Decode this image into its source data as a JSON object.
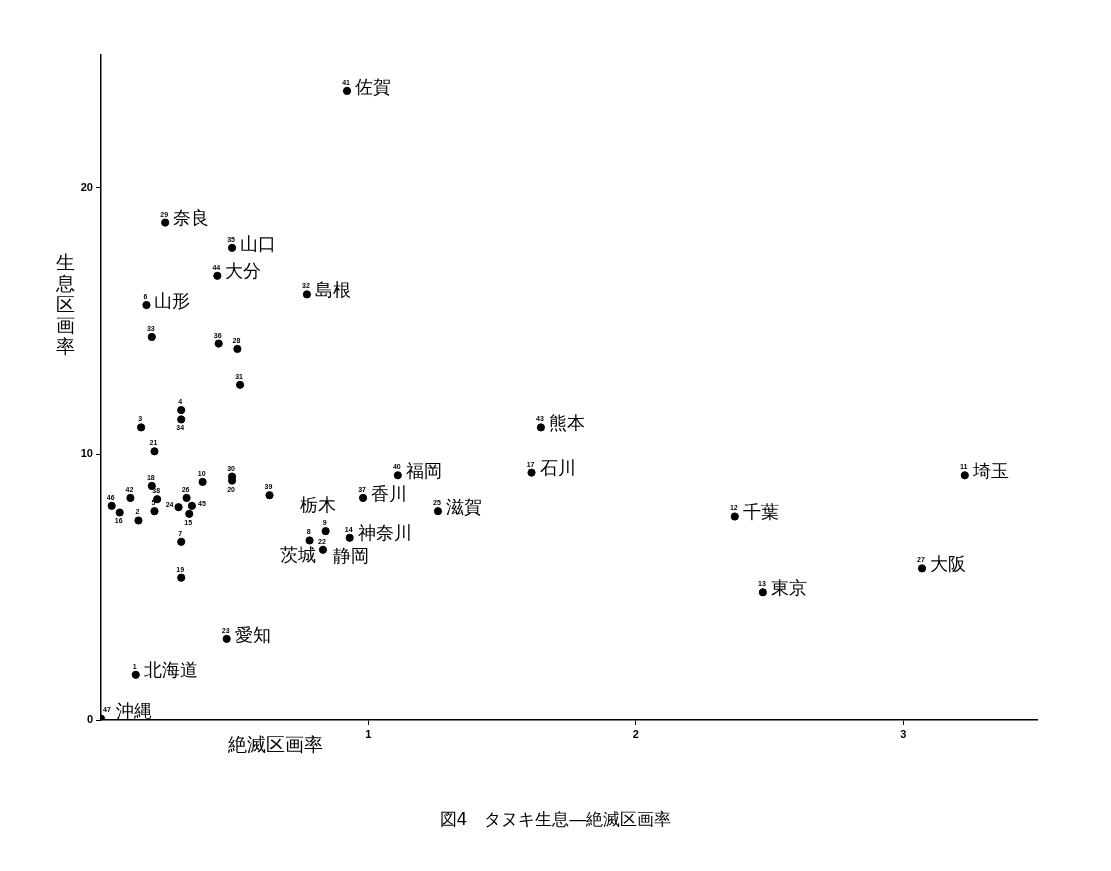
{
  "chart_data": {
    "type": "scatter",
    "title": "図4　タヌキ生息―絶滅区画率",
    "xlabel": "絶滅区画率",
    "ylabel": "生息区画率",
    "color": "#000000",
    "marker": "circle",
    "legend": false,
    "grid": false,
    "xlim": [
      0,
      3.5
    ],
    "xticks": [
      1,
      2,
      3
    ],
    "ylim": [
      0,
      25
    ],
    "yticks": [
      0,
      10,
      20
    ],
    "x": [
      0.92,
      0.24,
      0.49,
      0.435,
      0.77,
      0.17,
      0.19,
      0.44,
      0.51,
      0.52,
      0.3,
      0.3,
      0.15,
      0.2,
      0.38,
      0.19,
      0.49,
      0.49,
      0.11,
      0.21,
      0.32,
      0.04,
      0.07,
      0.2,
      0.14,
      0.29,
      0.34,
      0.33,
      0.3,
      0.3,
      0.63,
      1.11,
      0.98,
      1.26,
      0.84,
      0.78,
      0.83,
      0.93,
      0.47,
      0.13,
      0.0,
      1.645,
      1.61,
      2.37,
      2.475,
      3.23,
      3.07
    ],
    "values": [
      23.65,
      18.7,
      17.75,
      16.7,
      16.0,
      15.6,
      14.4,
      14.15,
      13.95,
      12.6,
      11.65,
      11.3,
      11.0,
      10.1,
      8.95,
      8.8,
      9.15,
      9.0,
      8.35,
      8.3,
      8.35,
      8.05,
      7.8,
      7.85,
      7.5,
      8.0,
      8.05,
      7.75,
      6.7,
      5.35,
      8.45,
      9.2,
      8.35,
      7.85,
      7.1,
      6.75,
      6.4,
      6.85,
      3.05,
      1.7,
      0.05,
      11.0,
      9.3,
      7.65,
      4.8,
      9.2,
      5.7
    ],
    "annotations": [
      {
        "text": "41",
        "x": 0.92,
        "y": 23.65
      },
      {
        "text": "29",
        "x": 0.24,
        "y": 18.7
      },
      {
        "text": "35",
        "x": 0.49,
        "y": 17.75
      },
      {
        "text": "44",
        "x": 0.435,
        "y": 16.7
      },
      {
        "text": "32",
        "x": 0.77,
        "y": 16.0
      },
      {
        "text": "6",
        "x": 0.17,
        "y": 15.6
      },
      {
        "text": "33",
        "x": 0.19,
        "y": 14.4
      },
      {
        "text": "36",
        "x": 0.44,
        "y": 14.15
      },
      {
        "text": "28",
        "x": 0.51,
        "y": 13.95
      },
      {
        "text": "31",
        "x": 0.52,
        "y": 12.6
      },
      {
        "text": "4",
        "x": 0.3,
        "y": 11.65
      },
      {
        "text": "34",
        "x": 0.3,
        "y": 11.3
      },
      {
        "text": "3",
        "x": 0.15,
        "y": 11.0
      },
      {
        "text": "21",
        "x": 0.2,
        "y": 10.1
      },
      {
        "text": "10",
        "x": 0.38,
        "y": 8.95
      },
      {
        "text": "18",
        "x": 0.19,
        "y": 8.8
      },
      {
        "text": "30",
        "x": 0.49,
        "y": 9.15
      },
      {
        "text": "20",
        "x": 0.49,
        "y": 9.0
      },
      {
        "text": "42",
        "x": 0.11,
        "y": 8.35
      },
      {
        "text": "38",
        "x": 0.21,
        "y": 8.3
      },
      {
        "text": "26",
        "x": 0.32,
        "y": 8.35
      },
      {
        "text": "46",
        "x": 0.04,
        "y": 8.05
      },
      {
        "text": "16",
        "x": 0.07,
        "y": 7.8
      },
      {
        "text": "5",
        "x": 0.2,
        "y": 7.85
      },
      {
        "text": "2",
        "x": 0.14,
        "y": 7.5
      },
      {
        "text": "24",
        "x": 0.29,
        "y": 8.0
      },
      {
        "text": "45",
        "x": 0.34,
        "y": 8.05
      },
      {
        "text": "15",
        "x": 0.33,
        "y": 7.75
      },
      {
        "text": "7",
        "x": 0.3,
        "y": 6.7
      },
      {
        "text": "19",
        "x": 0.3,
        "y": 5.35
      },
      {
        "text": "39",
        "x": 0.63,
        "y": 8.45
      },
      {
        "text": "40",
        "x": 1.11,
        "y": 9.2
      },
      {
        "text": "37",
        "x": 0.98,
        "y": 8.35
      },
      {
        "text": "25",
        "x": 1.26,
        "y": 7.85
      },
      {
        "text": "9",
        "x": 0.84,
        "y": 7.1
      },
      {
        "text": "8",
        "x": 0.78,
        "y": 6.75
      },
      {
        "text": "22",
        "x": 0.83,
        "y": 6.4
      },
      {
        "text": "14",
        "x": 0.93,
        "y": 6.85
      },
      {
        "text": "23",
        "x": 0.47,
        "y": 3.05
      },
      {
        "text": "1",
        "x": 0.13,
        "y": 1.7
      },
      {
        "text": "47",
        "x": 0.0,
        "y": 0.05
      },
      {
        "text": "43",
        "x": 1.645,
        "y": 11.0
      },
      {
        "text": "17",
        "x": 1.61,
        "y": 9.3
      },
      {
        "text": "12",
        "x": 2.37,
        "y": 7.65
      },
      {
        "text": "13",
        "x": 2.475,
        "y": 4.8
      },
      {
        "text": "11",
        "x": 3.23,
        "y": 9.2
      },
      {
        "text": "27",
        "x": 3.07,
        "y": 5.7
      },
      {
        "text": "佐賀",
        "x": 0.92,
        "y": 23.65
      },
      {
        "text": "奈良",
        "x": 0.24,
        "y": 18.7
      },
      {
        "text": "山口",
        "x": 0.49,
        "y": 17.75
      },
      {
        "text": "大分",
        "x": 0.435,
        "y": 16.7
      },
      {
        "text": "島根",
        "x": 0.77,
        "y": 16.0
      },
      {
        "text": "山形",
        "x": 0.17,
        "y": 15.6
      },
      {
        "text": "福岡",
        "x": 1.11,
        "y": 9.2
      },
      {
        "text": "香川",
        "x": 0.98,
        "y": 8.35
      },
      {
        "text": "滋賀",
        "x": 1.26,
        "y": 7.85
      },
      {
        "text": "栃木",
        "x": 0.84,
        "y": 7.1
      },
      {
        "text": "茨城",
        "x": 0.78,
        "y": 6.75
      },
      {
        "text": "静岡",
        "x": 0.83,
        "y": 6.4
      },
      {
        "text": "神奈川",
        "x": 0.93,
        "y": 6.85
      },
      {
        "text": "愛知",
        "x": 0.47,
        "y": 3.05
      },
      {
        "text": "北海道",
        "x": 0.13,
        "y": 1.7
      },
      {
        "text": "沖縄",
        "x": 0.0,
        "y": 0.05
      },
      {
        "text": "熊本",
        "x": 1.645,
        "y": 11.0
      },
      {
        "text": "石川",
        "x": 1.61,
        "y": 9.3
      },
      {
        "text": "千葉",
        "x": 2.37,
        "y": 7.65
      },
      {
        "text": "東京",
        "x": 2.475,
        "y": 4.8
      },
      {
        "text": "埼玉",
        "x": 3.23,
        "y": 9.2
      },
      {
        "text": "大阪",
        "x": 3.07,
        "y": 5.7
      }
    ]
  }
}
